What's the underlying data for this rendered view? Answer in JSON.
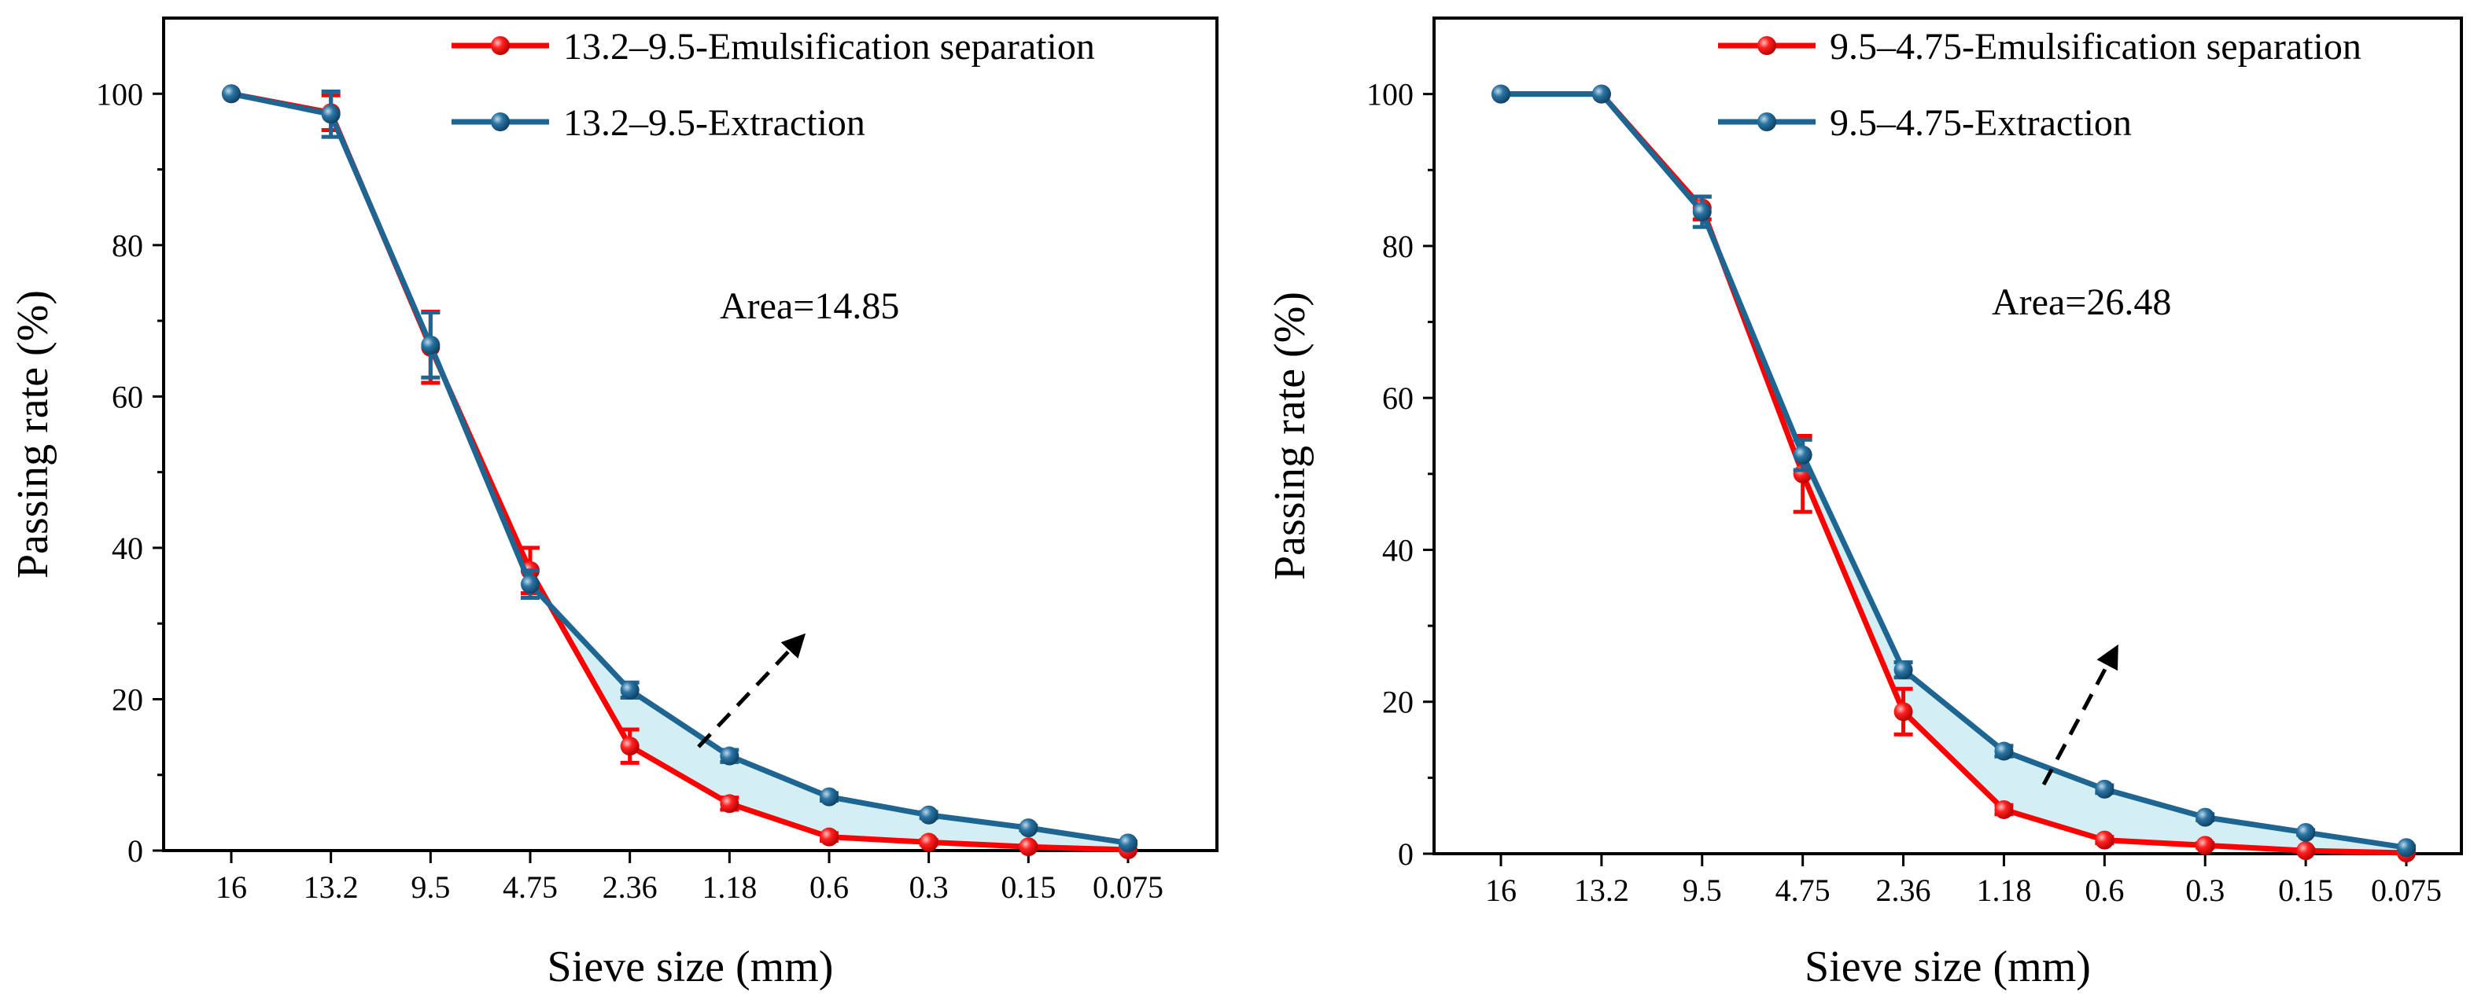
{
  "chart_data": [
    {
      "type": "line",
      "title": "",
      "xlabel": "Sieve size (mm)",
      "ylabel": "Passing rate (%)",
      "categories": [
        "16",
        "13.2",
        "9.5",
        "4.75",
        "2.36",
        "1.18",
        "0.6",
        "0.3",
        "0.15",
        "0.075"
      ],
      "ylim": [
        0,
        110
      ],
      "yticks": [
        0,
        20,
        40,
        60,
        80,
        100
      ],
      "grid": false,
      "legend_position": "top-right",
      "annotation": "Area=14.85",
      "series": [
        {
          "name": "13.2–9.5-Emulsification separation",
          "color": "#ff0000",
          "values": [
            100,
            97.5,
            66.5,
            37.0,
            13.8,
            6.2,
            1.8,
            1.1,
            0.5,
            0.1
          ],
          "errors": [
            0,
            2.3,
            4.7,
            3.0,
            2.2,
            0.8,
            0.5,
            0.3,
            0.2,
            0
          ]
        },
        {
          "name": "13.2–9.5-Extraction",
          "color": "#1f6592",
          "values": [
            100,
            97.3,
            66.8,
            35.2,
            21.2,
            12.5,
            7.1,
            4.7,
            3.0,
            1.0
          ],
          "errors": [
            0,
            3.0,
            4.3,
            1.8,
            1.0,
            0.8,
            0.5,
            0.4,
            0.3,
            0.2
          ]
        }
      ],
      "fill_color": "#d3eff4"
    },
    {
      "type": "line",
      "title": "",
      "xlabel": "Sieve size (mm)",
      "ylabel": "Passing rate (%)",
      "categories": [
        "16",
        "13.2",
        "9.5",
        "4.75",
        "2.36",
        "1.18",
        "0.6",
        "0.3",
        "0.15",
        "0.075"
      ],
      "ylim": [
        0,
        110
      ],
      "yticks": [
        0,
        20,
        40,
        60,
        80,
        100
      ],
      "grid": false,
      "legend_position": "top-right",
      "annotation": "Area=26.48",
      "series": [
        {
          "name": "9.5–4.75-Emulsification separation",
          "color": "#ff0000",
          "values": [
            100,
            100,
            85.0,
            50.0,
            18.7,
            5.8,
            1.8,
            1.1,
            0.4,
            0.1
          ],
          "errors": [
            0,
            0,
            1.5,
            5.0,
            3.0,
            0.6,
            0.4,
            0.3,
            0.2,
            0
          ]
        },
        {
          "name": "9.5–4.75-Extraction",
          "color": "#1f6592",
          "values": [
            100,
            100,
            84.5,
            52.5,
            24.2,
            13.5,
            8.5,
            4.8,
            2.8,
            0.8
          ],
          "errors": [
            0,
            0,
            2.0,
            2.0,
            1.0,
            0.7,
            0.5,
            0.4,
            0.3,
            0.2
          ]
        }
      ],
      "fill_color": "#d3eff4"
    }
  ]
}
